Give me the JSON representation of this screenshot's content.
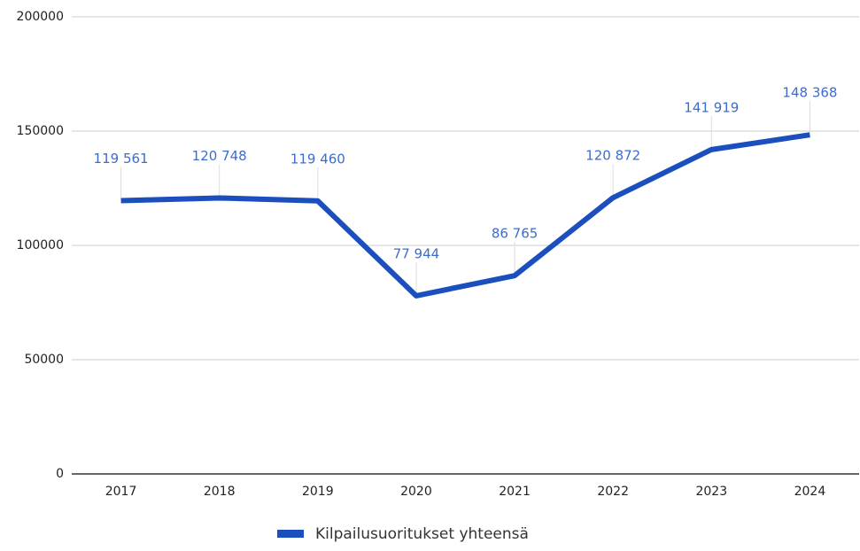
{
  "chart_data": {
    "type": "line",
    "categories": [
      "2017",
      "2018",
      "2019",
      "2020",
      "2021",
      "2022",
      "2023",
      "2024"
    ],
    "series": [
      {
        "name": "Kilpailusuoritukset yhteensä",
        "color": "#1a4fbd",
        "values": [
          119561,
          120748,
          119460,
          77944,
          86765,
          120872,
          141919,
          148368
        ],
        "value_labels": [
          "119 561",
          "120 748",
          "119 460",
          "77 944",
          "86 765",
          "120 872",
          "141 919",
          "148 368"
        ]
      }
    ],
    "ylim": [
      0,
      200000
    ],
    "yticks": [
      0,
      50000,
      100000,
      150000,
      200000
    ],
    "grid": true,
    "legend": "bottom"
  }
}
